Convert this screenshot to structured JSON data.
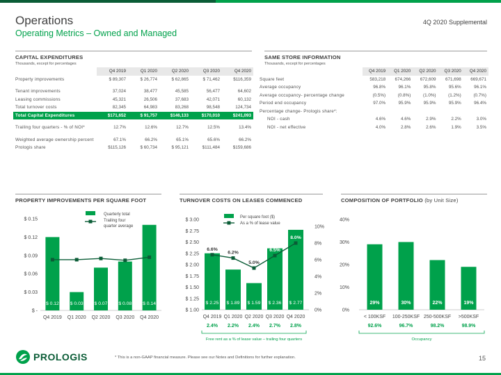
{
  "header": {
    "title": "Operations",
    "subtitle": "Operating Metrics – Owned and Managed",
    "supplemental": "4Q 2020 Supplemental"
  },
  "colors": {
    "brand_green": "#00a14b",
    "dark_green": "#0a5c36",
    "gray_line": "#9a9a9a"
  },
  "capex": {
    "heading": "CAPITAL EXPENDITURES",
    "subheading": "Thousands, except for percentages",
    "columns": [
      "Q4 2019",
      "Q1 2020",
      "Q2 2020",
      "Q3 2020",
      "Q4 2020"
    ],
    "rows": [
      {
        "label": "Property improvements",
        "values": [
          "$ 89,307",
          "$ 26,774",
          "$ 62,865",
          "$ 71,462",
          "$116,359"
        ]
      },
      {
        "label": "Tenant improvements",
        "values": [
          "37,024",
          "38,477",
          "45,585",
          "56,477",
          "64,602"
        ]
      },
      {
        "label": "Leasing commissions",
        "values": [
          "45,321",
          "26,506",
          "37,683",
          "42,071",
          "60,132"
        ]
      },
      {
        "label": "Total turnover costs",
        "values": [
          "82,345",
          "64,983",
          "83,268",
          "98,548",
          "124,734"
        ]
      },
      {
        "label": "Total Capital Expenditures",
        "values": [
          "$171,652",
          "$ 91,757",
          "$146,133",
          "$170,010",
          "$241,093"
        ]
      },
      {
        "label": "Trailing four quarters - % of NOI*",
        "values": [
          "12.7%",
          "12.6%",
          "12.7%",
          "12.5%",
          "13.4%"
        ]
      },
      {
        "label": "Weighted average ownership percent",
        "values": [
          "67.1%",
          "66.2%",
          "65.1%",
          "65.6%",
          "66.2%"
        ]
      },
      {
        "label": "Prologis share",
        "values": [
          "$115,126",
          "$ 60,734",
          "$ 95,121",
          "$111,484",
          "$159,686"
        ]
      }
    ]
  },
  "same_store": {
    "heading": "SAME STORE INFORMATION",
    "subheading": "Thousands, except for percentages",
    "columns": [
      "Q4 2019",
      "Q1 2020",
      "Q2 2020",
      "Q3 2020",
      "Q4 2020"
    ],
    "rows": [
      {
        "label": "Square feet",
        "values": [
          "583,218",
          "674,266",
          "672,609",
          "671,698",
          "669,671"
        ]
      },
      {
        "label": "Average occupancy",
        "values": [
          "96.8%",
          "96.1%",
          "95.8%",
          "95.6%",
          "96.1%"
        ]
      },
      {
        "label": "Average occupancy- percentage change",
        "values": [
          "(0.5%)",
          "(0.8%)",
          "(1.0%)",
          "(1.2%)",
          "(0.7%)"
        ]
      },
      {
        "label": "Period end occupancy",
        "values": [
          "97.0%",
          "95.9%",
          "95.9%",
          "95.9%",
          "96.4%"
        ]
      },
      {
        "label": "Percentage change- Prologis share*:",
        "values": [
          "",
          "",
          "",
          "",
          ""
        ]
      },
      {
        "label": "NOI - cash",
        "values": [
          "4.6%",
          "4.6%",
          "2.9%",
          "2.2%",
          "3.0%"
        ]
      },
      {
        "label": "NOI - net effective",
        "values": [
          "4.0%",
          "2.8%",
          "2.6%",
          "1.9%",
          "3.5%"
        ]
      }
    ]
  },
  "chart1_heading": "PROPERTY IMPROVEMENTS PER SQUARE FOOT",
  "chart2_heading": "TURNOVER COSTS ON LEASES COMMENCED",
  "chart3_heading_main": "COMPOSITION OF PORTFOLIO",
  "chart3_heading_suffix": "(by Unit Size)",
  "chart_data": [
    {
      "type": "bar",
      "categories": [
        "Q4 2019",
        "Q1 2020",
        "Q2 2020",
        "Q3 2020",
        "Q4 2020"
      ],
      "series": [
        {
          "name": "Quarterly total",
          "values": [
            0.12,
            0.03,
            0.07,
            0.08,
            0.14
          ],
          "labels": [
            "$ 0.12",
            "$ 0.03",
            "$ 0.07",
            "$ 0.08",
            "$ 0.14"
          ]
        },
        {
          "name": "Trailing four quarter average",
          "type": "line",
          "values": [
            0.083,
            0.083,
            0.085,
            0.082,
            0.087
          ]
        }
      ],
      "legend": [
        "Quarterly total",
        "Trailing four",
        "quarter average"
      ],
      "yticks": [
        "$ -",
        "$ 0.03",
        "$ 0.06",
        "$ 0.09",
        "$ 0.12",
        "$ 0.15"
      ],
      "ylim": [
        0,
        0.15
      ]
    },
    {
      "type": "bar",
      "categories": [
        "Q4 2019",
        "Q1 2020",
        "Q2 2020",
        "Q3 2020",
        "Q4 2020"
      ],
      "series": [
        {
          "name": "Per square foot ($)",
          "values": [
            2.25,
            1.89,
            1.59,
            2.36,
            2.77
          ],
          "labels": [
            "$ 2.25",
            "$ 1.89",
            "$ 1.59",
            "$ 2.36",
            "$ 2.77"
          ]
        },
        {
          "name": "As a % of lease value",
          "type": "line",
          "axis": "right",
          "values": [
            6.6,
            6.2,
            5.0,
            6.5,
            8.0
          ],
          "labels": [
            "6.6%",
            "6.2%",
            "5.0%",
            "6.5%",
            "8.0%"
          ]
        }
      ],
      "yticks_left": [
        "$ 1.00",
        "$ 1.25",
        "$ 1.50",
        "$ 1.75",
        "$ 2.00",
        "$ 2.25",
        "$ 2.50",
        "$ 2.75",
        "$ 3.00"
      ],
      "ylim_left": [
        1.0,
        3.0
      ],
      "yticks_right": [
        "0%",
        "2%",
        "4%",
        "6%",
        "8%",
        "10%"
      ],
      "ylim_right": [
        0,
        10
      ],
      "bottom_values": [
        "2.4%",
        "2.2%",
        "2.4%",
        "2.7%",
        "2.8%"
      ],
      "bottom_caption": "Free rent as a % of lease value – trailing four quarters"
    },
    {
      "type": "bar",
      "categories": [
        "< 100KSF",
        "100-250KSF",
        "250-500KSF",
        ">500KSF"
      ],
      "series": [
        {
          "name": "Composition",
          "values": [
            29,
            30,
            22,
            19
          ],
          "labels": [
            "29%",
            "30%",
            "22%",
            "19%"
          ]
        }
      ],
      "yticks": [
        "0%",
        "10%",
        "20%",
        "30%",
        "40%"
      ],
      "ylim": [
        0,
        40
      ],
      "bottom_values": [
        "92.6%",
        "96.7%",
        "98.2%",
        "98.9%"
      ],
      "bottom_caption": "Occupancy"
    }
  ],
  "footer": {
    "logo_text": "PROLOGIS",
    "note": "* This is a non-GAAP financial measure. Please see our Notes and Definitions for further explanation.",
    "page": "15"
  }
}
